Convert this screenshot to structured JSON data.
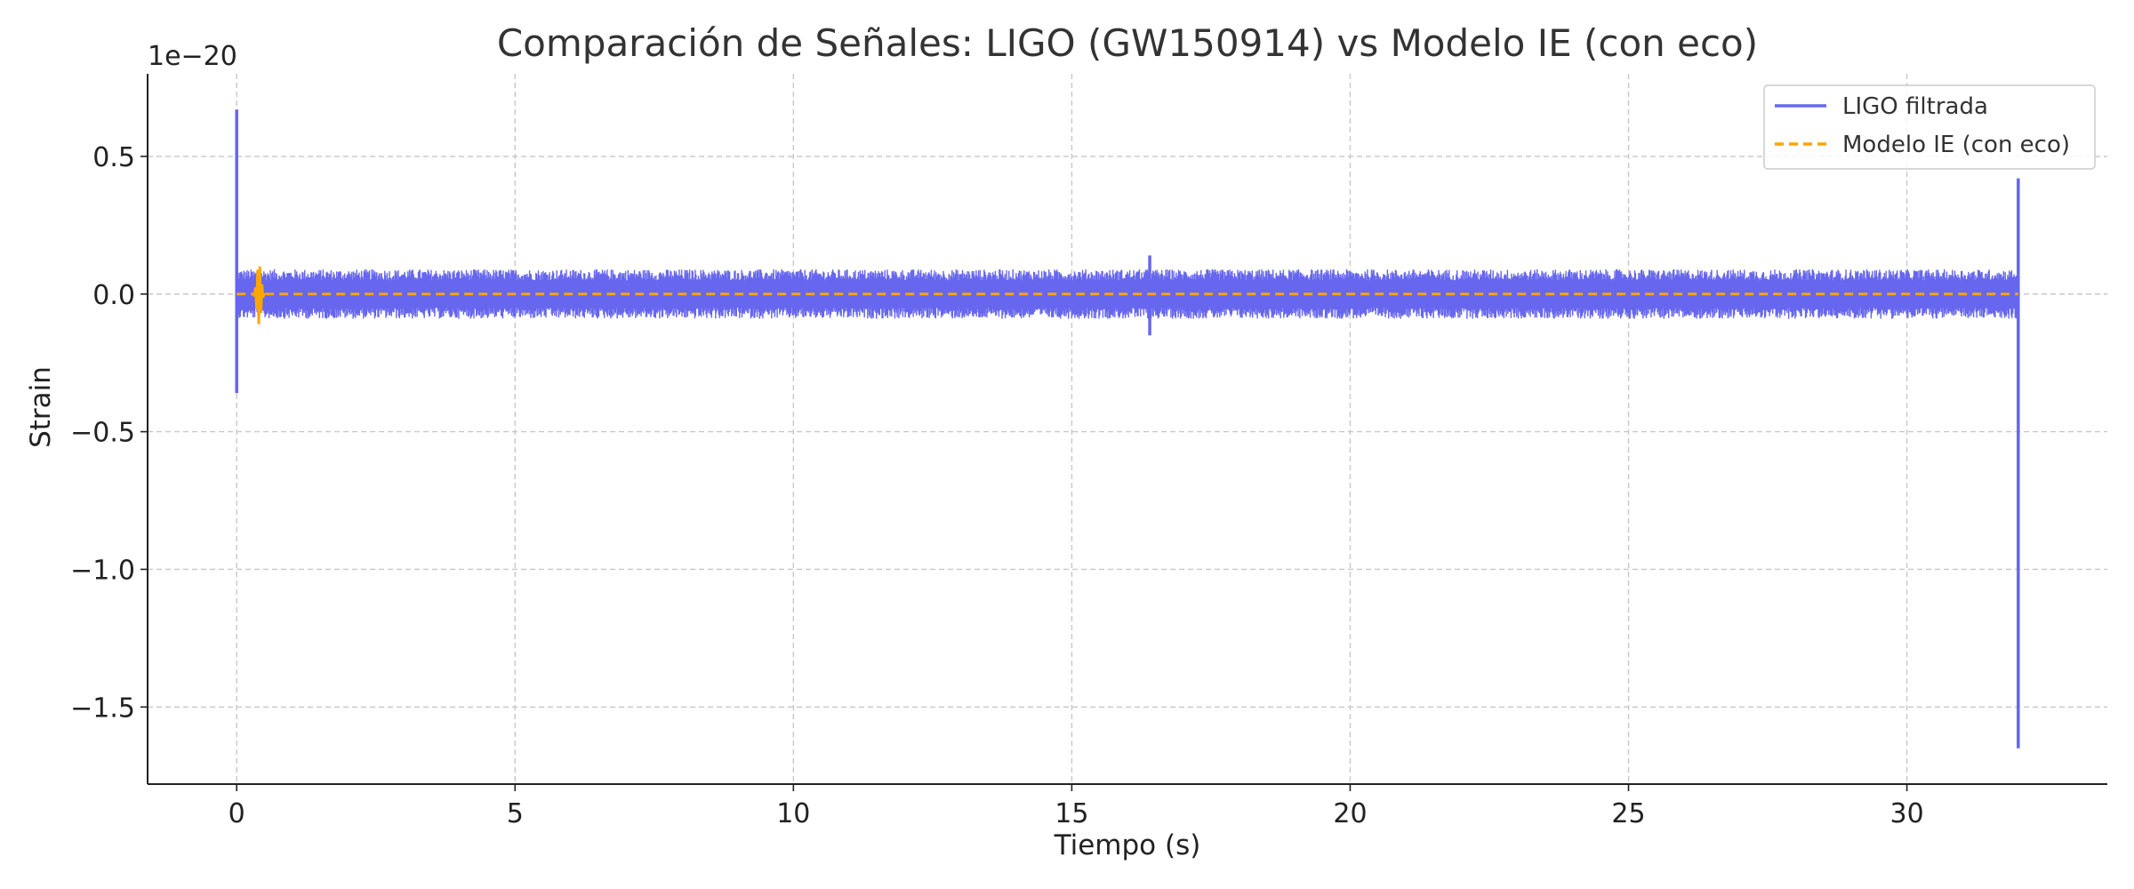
{
  "chart_data": {
    "type": "line",
    "title": "Comparación de Señales: LIGO (GW150914) vs Modelo IE (con eco)",
    "xlabel": "Tiempo (s)",
    "ylabel": "Strain",
    "y_offset_label": "1e−20",
    "xlim": [
      -1.6,
      33.6
    ],
    "ylim": [
      -1.78,
      0.8
    ],
    "x_ticks": [
      0,
      5,
      10,
      15,
      20,
      25,
      30
    ],
    "x_tick_labels": [
      "0",
      "5",
      "10",
      "15",
      "20",
      "25",
      "30"
    ],
    "y_ticks": [
      0.5,
      0.0,
      -0.5,
      -1.0,
      -1.5
    ],
    "y_tick_labels": [
      "0.5",
      "0.0",
      "−0.5",
      "−1.0",
      "−1.5"
    ],
    "grid": true,
    "legend_position": "top-right",
    "series": [
      {
        "name": "LIGO filtrada",
        "color": "#6666ee",
        "style": "solid",
        "x_range": [
          0,
          32
        ],
        "noise_band": [
          -0.09,
          0.09
        ],
        "spikes": [
          {
            "x": 0.0,
            "min": -0.36,
            "max": 0.67
          },
          {
            "x": 16.4,
            "min": -0.15,
            "max": 0.14
          },
          {
            "x": 32.0,
            "min": -1.65,
            "max": 0.42
          }
        ]
      },
      {
        "name": "Modelo IE (con eco)",
        "color": "#ffa500",
        "style": "dashed",
        "x_range": [
          0,
          32
        ],
        "value": 0.0,
        "burst": {
          "x_center": 0.4,
          "x_width": 0.1,
          "amplitude": 0.11
        }
      }
    ]
  }
}
